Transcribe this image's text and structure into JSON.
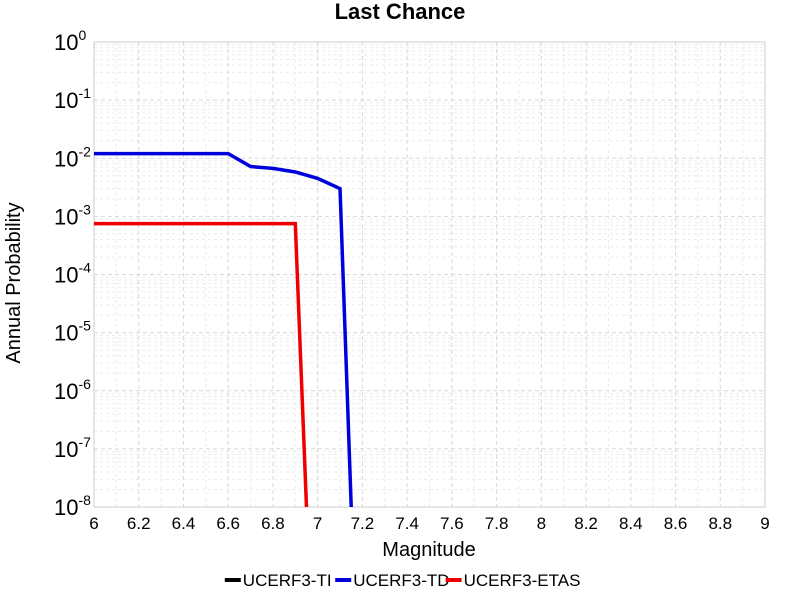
{
  "chart_data": {
    "type": "line",
    "title": "Last Chance",
    "xlabel": "Magnitude",
    "ylabel": "Annual Probability",
    "xlim": [
      6,
      9
    ],
    "ylim": [
      1e-08,
      1
    ],
    "yscale": "log",
    "grid": true,
    "legend_position": "bottom",
    "x_ticks": [
      "6",
      "6.2",
      "6.4",
      "6.6",
      "6.8",
      "7",
      "7.2",
      "7.4",
      "7.6",
      "7.8",
      "8",
      "8.2",
      "8.4",
      "8.6",
      "8.8",
      "9"
    ],
    "y_tick_exponents": [
      "0",
      "-1",
      "-2",
      "-3",
      "-4",
      "-5",
      "-6",
      "-7",
      "-8"
    ],
    "series": [
      {
        "name": "UCERF3-TI",
        "color": "#000000",
        "x": [],
        "y": []
      },
      {
        "name": "UCERF3-TD",
        "color": "#0000dd",
        "x": [
          6.0,
          6.1,
          6.2,
          6.3,
          6.4,
          6.5,
          6.6,
          6.7,
          6.8,
          6.9,
          7.0,
          7.1,
          7.15
        ],
        "y": [
          0.012,
          0.012,
          0.012,
          0.012,
          0.012,
          0.012,
          0.012,
          0.0072,
          0.0067,
          0.0058,
          0.0045,
          0.003,
          1e-08
        ]
      },
      {
        "name": "UCERF3-ETAS",
        "color": "#ee0000",
        "x": [
          6.0,
          6.1,
          6.2,
          6.3,
          6.4,
          6.5,
          6.6,
          6.7,
          6.8,
          6.9,
          6.95
        ],
        "y": [
          0.00075,
          0.00075,
          0.00075,
          0.00075,
          0.00075,
          0.00075,
          0.00075,
          0.00075,
          0.00075,
          0.00075,
          1e-08
        ]
      }
    ]
  }
}
